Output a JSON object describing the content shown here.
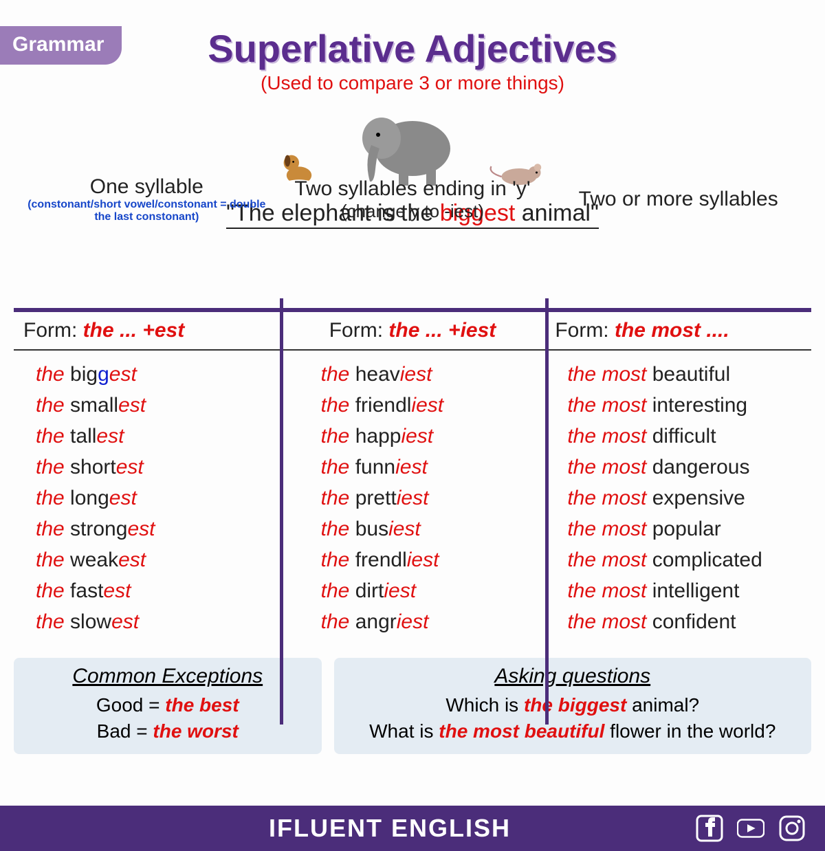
{
  "badge": "Grammar",
  "title": "Superlative Adjectives",
  "subtitle": "(Used to compare 3 or more things)",
  "sentence": {
    "full_prefix": "\"The elephant is the ",
    "highlight": "biggest",
    "full_suffix": " animal\""
  },
  "columns": [
    {
      "heading": "One syllable",
      "subheading": "(constonant/short vowel/constonant = double the last constonant)",
      "form_label": "Form: ",
      "form_value": "the ... +est",
      "examples": [
        {
          "pre": "the ",
          "mid": "big",
          "dbl": "g",
          "suf": "est"
        },
        {
          "pre": "the ",
          "mid": "small",
          "suf": "est"
        },
        {
          "pre": "the ",
          "mid": "tall",
          "suf": "est"
        },
        {
          "pre": "the ",
          "mid": "short",
          "suf": "est"
        },
        {
          "pre": "the ",
          "mid": "long",
          "suf": "est"
        },
        {
          "pre": "the ",
          "mid": "strong",
          "suf": "est"
        },
        {
          "pre": "the ",
          "mid": "weak",
          "suf": "est"
        },
        {
          "pre": "the ",
          "mid": "fast",
          "suf": "est"
        },
        {
          "pre": "the ",
          "mid": "slow",
          "suf": "est"
        }
      ]
    },
    {
      "heading": "Two syllables ending in 'y'",
      "subheading": "(change y to -iest)",
      "form_label": "Form: ",
      "form_value": "the ... +iest",
      "examples": [
        {
          "pre": "the ",
          "mid": "heav",
          "suf": "iest"
        },
        {
          "pre": "the ",
          "mid": "friendl",
          "suf": "iest"
        },
        {
          "pre": "the ",
          "mid": "happ",
          "suf": "iest"
        },
        {
          "pre": "the ",
          "mid": "funn",
          "suf": "iest"
        },
        {
          "pre": "the ",
          "mid": "prett",
          "suf": "iest"
        },
        {
          "pre": "the ",
          "mid": "bus",
          "suf": "iest"
        },
        {
          "pre": "the ",
          "mid": "frendl",
          "suf": "iest"
        },
        {
          "pre": "the ",
          "mid": "dirt",
          "suf": "iest"
        },
        {
          "pre": "the ",
          "mid": "angr",
          "suf": "iest"
        }
      ]
    },
    {
      "heading": "Two or more syllables",
      "subheading": "",
      "form_label": "Form: ",
      "form_value": "the most ....",
      "examples": [
        {
          "pre": "the most ",
          "mid": "beautiful",
          "suf": ""
        },
        {
          "pre": "the most ",
          "mid": "interesting",
          "suf": ""
        },
        {
          "pre": "the most ",
          "mid": "difficult",
          "suf": ""
        },
        {
          "pre": "the most ",
          "mid": "dangerous",
          "suf": ""
        },
        {
          "pre": "the most ",
          "mid": "expensive",
          "suf": ""
        },
        {
          "pre": "the most ",
          "mid": "popular",
          "suf": ""
        },
        {
          "pre": "the most ",
          "mid": "complicated",
          "suf": ""
        },
        {
          "pre": "the most ",
          "mid": "intelligent",
          "suf": ""
        },
        {
          "pre": "the most ",
          "mid": "confident",
          "suf": ""
        }
      ]
    }
  ],
  "exceptions": {
    "title": "Common Exceptions",
    "lines": [
      {
        "plain": "Good = ",
        "hi": "the best"
      },
      {
        "plain": "Bad = ",
        "hi": "the worst"
      }
    ]
  },
  "questions": {
    "title": "Asking questions",
    "lines": [
      {
        "a": "Which is ",
        "hi": "the biggest",
        "b": " animal?"
      },
      {
        "a": "What is ",
        "hi": "the most beautiful",
        "b": " flower in the world?"
      }
    ]
  },
  "footer": {
    "brand": "IFLUENT ENGLISH",
    "icons": [
      "facebook",
      "youtube",
      "instagram"
    ]
  },
  "colors": {
    "purple": "#4b2d7a",
    "lilac": "#9b7cb8",
    "title": "#5b2d8e",
    "red": "#e01010",
    "blue": "#1646c9",
    "boxbg": "#e4ecf3"
  }
}
